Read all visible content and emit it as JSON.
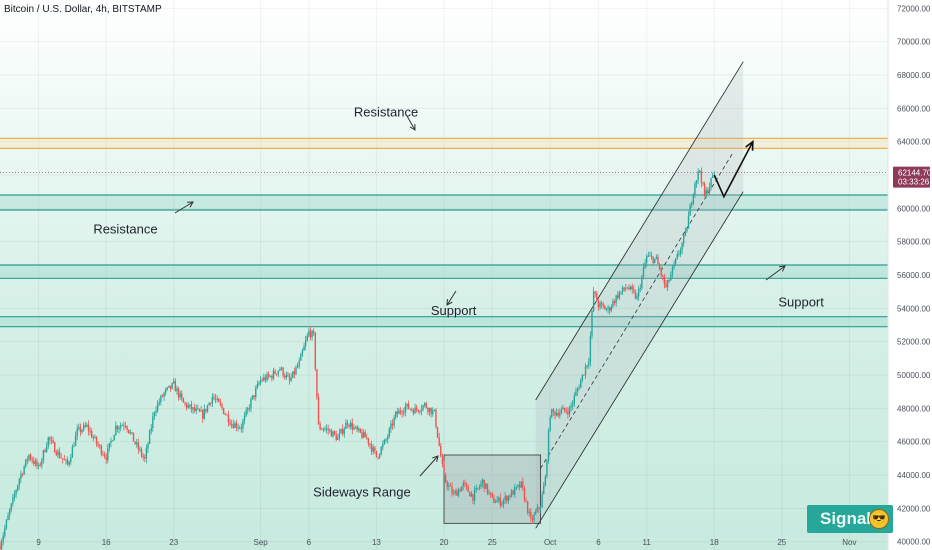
{
  "chart_data": {
    "type": "candlestick",
    "title": "Bitcoin / U.S. Dollar, 4h, BITSTAMP",
    "ylim": [
      39500,
      72500
    ],
    "y_ticks": [
      40000,
      42000,
      44000,
      46000,
      48000,
      50000,
      52000,
      54000,
      56000,
      58000,
      60000,
      62000,
      64000,
      66000,
      68000,
      70000,
      72000
    ],
    "y_tick_labels": [
      "40000.00",
      "42000.00",
      "44000.00",
      "46000.00",
      "48000.00",
      "50000.00",
      "52000.00",
      "54000.00",
      "56000.00",
      "58000.00",
      "60000.00",
      "62000.00",
      "64000.00",
      "66000.00",
      "68000.00",
      "70000.00",
      "72000.00"
    ],
    "x_ticks": [
      {
        "label": "9",
        "day": 9
      },
      {
        "label": "16",
        "day": 16
      },
      {
        "label": "23",
        "day": 23
      },
      {
        "label": "Sep",
        "day": 32
      },
      {
        "label": "6",
        "day": 37
      },
      {
        "label": "13",
        "day": 44
      },
      {
        "label": "20",
        "day": 51
      },
      {
        "label": "25",
        "day": 56
      },
      {
        "label": "Oct",
        "day": 62
      },
      {
        "label": "6",
        "day": 67
      },
      {
        "label": "11",
        "day": 72
      },
      {
        "label": "18",
        "day": 79
      },
      {
        "label": "25",
        "day": 86
      },
      {
        "label": "Nov",
        "day": 93
      }
    ],
    "x_range_days": [
      5,
      97
    ],
    "price_path": [
      [
        5,
        39800
      ],
      [
        6,
        41800
      ],
      [
        7,
        43800
      ],
      [
        8,
        45200
      ],
      [
        9,
        44400
      ],
      [
        10,
        46200
      ],
      [
        11,
        45300
      ],
      [
        12,
        44600
      ],
      [
        13,
        46600
      ],
      [
        14,
        46900
      ],
      [
        15,
        45900
      ],
      [
        16,
        45100
      ],
      [
        17,
        46900
      ],
      [
        18,
        47100
      ],
      [
        19,
        45900
      ],
      [
        20,
        44900
      ],
      [
        21,
        47900
      ],
      [
        22,
        48900
      ],
      [
        23,
        49400
      ],
      [
        24,
        48300
      ],
      [
        25,
        47900
      ],
      [
        26,
        47600
      ],
      [
        27,
        48700
      ],
      [
        28,
        48000
      ],
      [
        29,
        47100
      ],
      [
        30,
        46900
      ],
      [
        31,
        48400
      ],
      [
        32,
        49700
      ],
      [
        33,
        49900
      ],
      [
        34,
        50400
      ],
      [
        35,
        49600
      ],
      [
        36,
        50700
      ],
      [
        37,
        52600
      ],
      [
        37.5,
        52300
      ],
      [
        38,
        46900
      ],
      [
        39,
        46700
      ],
      [
        40,
        46200
      ],
      [
        41,
        47200
      ],
      [
        42,
        46600
      ],
      [
        43,
        46200
      ],
      [
        44,
        45100
      ],
      [
        45,
        46100
      ],
      [
        46,
        47600
      ],
      [
        47,
        48100
      ],
      [
        48,
        47900
      ],
      [
        49,
        48200
      ],
      [
        50,
        47700
      ],
      [
        51,
        43800
      ],
      [
        52,
        42800
      ],
      [
        53,
        43400
      ],
      [
        54,
        42700
      ],
      [
        55,
        43600
      ],
      [
        56,
        42500
      ],
      [
        57,
        42400
      ],
      [
        58,
        42900
      ],
      [
        59,
        43400
      ],
      [
        60,
        41200
      ],
      [
        61,
        42200
      ],
      [
        61.5,
        43800
      ],
      [
        62,
        47700
      ],
      [
        63,
        47800
      ],
      [
        64,
        47900
      ],
      [
        65,
        49400
      ],
      [
        66,
        51000
      ],
      [
        66.5,
        55000
      ],
      [
        67,
        54200
      ],
      [
        68,
        53900
      ],
      [
        69,
        54800
      ],
      [
        70,
        55300
      ],
      [
        71,
        54600
      ],
      [
        72,
        57100
      ],
      [
        73,
        56900
      ],
      [
        74,
        55200
      ],
      [
        75,
        56800
      ],
      [
        76,
        58400
      ],
      [
        77,
        61600
      ],
      [
        77.5,
        62300
      ],
      [
        78,
        60700
      ],
      [
        79,
        62100
      ]
    ],
    "channel": {
      "upper": [
        [
          60.5,
          48500
        ],
        [
          82,
          68800
        ]
      ],
      "lower": [
        [
          60.5,
          40800
        ],
        [
          82,
          61000
        ]
      ],
      "midline": [
        [
          61,
          44400
        ],
        [
          81,
          63400
        ]
      ]
    },
    "sideways_box": {
      "x": [
        51,
        61
      ],
      "y": [
        41100,
        45200
      ]
    },
    "projection_path": [
      [
        79,
        62000
      ],
      [
        80,
        60700
      ],
      [
        83,
        64000
      ]
    ],
    "levels": {
      "orange_resistance": [
        63600,
        64200
      ],
      "teal_resistance": [
        59900,
        60800
      ],
      "teal_support_upper": [
        55800,
        56600
      ],
      "teal_support_lower": [
        52900,
        53500
      ]
    },
    "annotations": [
      {
        "text": "Resistance",
        "day": 45,
        "price": 65500
      },
      {
        "text": "Resistance",
        "day": 18,
        "price": 58500
      },
      {
        "text": "Support",
        "day": 52,
        "price": 53600
      },
      {
        "text": "Support",
        "day": 88,
        "price": 54100
      },
      {
        "text": "Sideways Range",
        "day": 42.5,
        "price": 42700
      }
    ],
    "current_price": 62144.7,
    "current_price_label": "62144.70",
    "countdown_label": "03:33:26"
  },
  "branding": {
    "signal_label": "Signal",
    "signal_color": "#27a69a"
  },
  "colors": {
    "bull_candle": "#26a69a",
    "bear_candle": "#ef5350",
    "level_teal": "#2a9d8f",
    "level_orange": "#f7a532",
    "price_badge": "#8e3b5a"
  }
}
